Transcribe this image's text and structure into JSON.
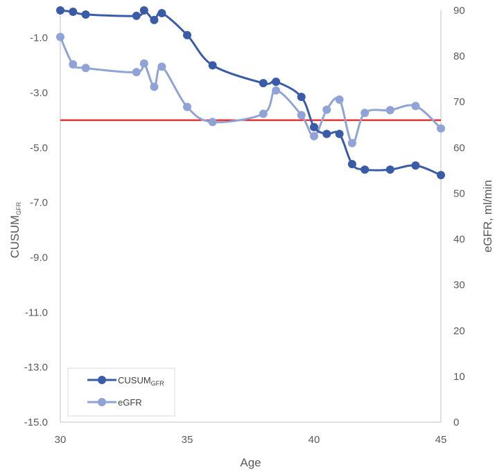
{
  "chart_data": {
    "type": "line",
    "xlabel": "Age",
    "ylabel_left": {
      "main": "CUSUM",
      "sub": "GFR"
    },
    "ylabel_right": "eGFR, ml/min",
    "xlim": [
      30,
      45
    ],
    "ylim_left": [
      -15,
      0
    ],
    "ylim_right": [
      0,
      90
    ],
    "x_ticks": [
      30,
      35,
      40,
      45
    ],
    "y_ticks_left": [
      "-1.0",
      "-3.0",
      "-5.0",
      "-7.0",
      "-9.0",
      "-11.0",
      "-13.0",
      "-15.0"
    ],
    "y_ticks_left_values": [
      -1,
      -3,
      -5,
      -7,
      -9,
      -11,
      -13,
      -15
    ],
    "y_ticks_right": [
      0,
      10,
      20,
      30,
      40,
      50,
      60,
      70,
      80,
      90
    ],
    "threshold": {
      "axis": "left",
      "value": -4.0,
      "color": "#ff0000"
    },
    "grid": false,
    "legend_position": "bottom-left",
    "series": [
      {
        "name": "CUSUM",
        "name_sub": "GFR",
        "axis": "left",
        "color": "#3a5ca8",
        "x": [
          30.0,
          30.5,
          31.0,
          33.0,
          33.3,
          33.7,
          34.0,
          35.0,
          36.0,
          38.0,
          38.5,
          39.5,
          40.0,
          40.5,
          41.0,
          41.5,
          42.0,
          43.0,
          44.0,
          45.0
        ],
        "y": [
          0.0,
          -0.05,
          -0.15,
          -0.2,
          0.0,
          -0.35,
          -0.1,
          -0.9,
          -2.0,
          -2.65,
          -2.6,
          -3.15,
          -4.25,
          -4.5,
          -4.5,
          -5.6,
          -5.8,
          -5.8,
          -5.65,
          -6.0
        ]
      },
      {
        "name": "eGFR",
        "axis": "right",
        "color": "#8fa3d6",
        "x": [
          30.0,
          30.5,
          31.0,
          33.0,
          33.3,
          33.7,
          34.0,
          35.0,
          36.0,
          38.0,
          38.5,
          39.5,
          40.0,
          40.5,
          41.0,
          41.5,
          42.0,
          43.0,
          44.0,
          45.0
        ],
        "y": [
          84.2,
          78.2,
          77.4,
          76.5,
          78.4,
          73.3,
          77.7,
          68.9,
          65.6,
          67.4,
          72.5,
          67.1,
          62.5,
          68.3,
          70.5,
          61.0,
          67.6,
          68.2,
          69.1,
          64.2
        ]
      }
    ]
  }
}
